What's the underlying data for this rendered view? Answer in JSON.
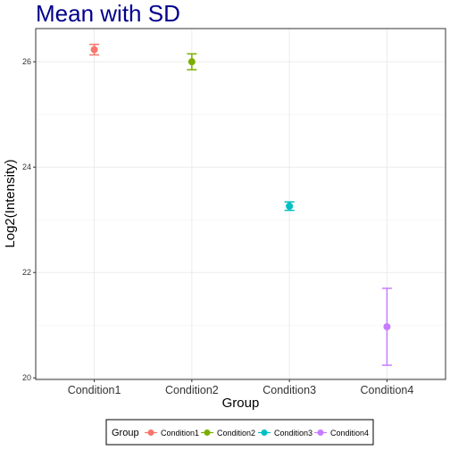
{
  "chart_data": {
    "type": "scatter",
    "title": "Mean with SD",
    "title_color": "#00008B",
    "xlabel": "Group",
    "ylabel": "Log2(Intensity)",
    "categories": [
      "Condition1",
      "Condition2",
      "Condition3",
      "Condition4"
    ],
    "series": [
      {
        "name": "Condition1",
        "mean": 26.23,
        "sd": 0.1,
        "color": "#F8766D"
      },
      {
        "name": "Condition2",
        "mean": 26.0,
        "sd": 0.15,
        "color": "#7CAE00"
      },
      {
        "name": "Condition3",
        "mean": 23.26,
        "sd": 0.08,
        "color": "#00BFC4"
      },
      {
        "name": "Condition4",
        "mean": 20.97,
        "sd": 0.73,
        "color": "#C77CFF"
      }
    ],
    "ylim": [
      19.97,
      26.63
    ],
    "y_ticks": [
      20,
      22,
      24,
      26
    ],
    "y_tick_labels": [
      "20",
      "22",
      "24",
      "26"
    ],
    "grid": true,
    "legend": {
      "title": "Group",
      "position": "bottom",
      "labels": [
        "Condition1",
        "Condition2",
        "Condition3",
        "Condition4"
      ]
    }
  }
}
